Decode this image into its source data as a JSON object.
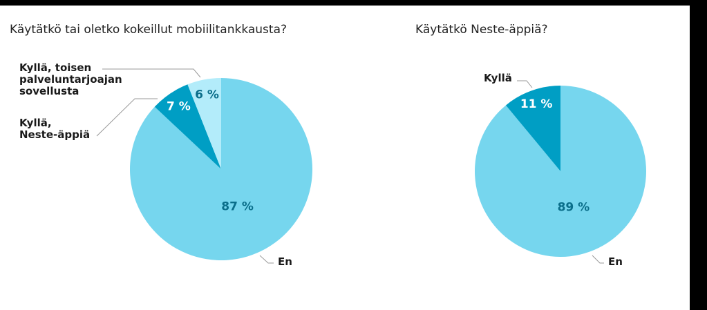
{
  "chart_data": [
    {
      "type": "pie",
      "title": "Käytätkö tai oletko kokeillut mobiilitankkausta?",
      "categories": [
        "En",
        "Kyllä,\nNeste-äppiä",
        "Kyllä, toisen\npalveluntarjoajan\nsovellusta"
      ],
      "values": [
        87,
        7,
        6
      ],
      "value_labels": [
        "87 %",
        "7 %",
        "6 %"
      ],
      "colors": [
        "#76d6ee",
        "#009ec4",
        "#b3ecfa"
      ]
    },
    {
      "type": "pie",
      "title": "Käytätkö Neste-äppiä?",
      "categories": [
        "En",
        "Kyllä"
      ],
      "values": [
        89,
        11
      ],
      "value_labels": [
        "89 %",
        "11 %"
      ],
      "colors": [
        "#76d6ee",
        "#009ec4"
      ]
    }
  ]
}
